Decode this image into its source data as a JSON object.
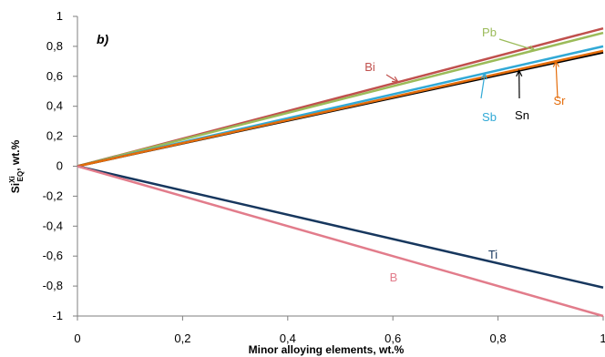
{
  "chart_data": {
    "type": "line",
    "panel_label": "b)",
    "xlabel": "Minor alloying elements, wt.%",
    "ylabel": {
      "base": "Si",
      "sup": "Xi",
      "sub": "EQ",
      "suffix": ", wt.%"
    },
    "xlim": [
      0,
      1
    ],
    "ylim": [
      -1,
      1
    ],
    "x_ticks": [
      "0",
      "0,2",
      "0,4",
      "0,6",
      "0,8",
      "1"
    ],
    "y_ticks": [
      "1",
      "0,8",
      "0,6",
      "0,4",
      "0,2",
      "0",
      "-0,2",
      "-0,4",
      "-0,6",
      "-0,8",
      "-1"
    ],
    "grid": false,
    "series": [
      {
        "name": "Bi",
        "color": "#c0504d",
        "x": [
          0,
          1
        ],
        "y": [
          0,
          0.92
        ]
      },
      {
        "name": "Pb",
        "color": "#9bbb59",
        "x": [
          0,
          1
        ],
        "y": [
          0,
          0.89
        ]
      },
      {
        "name": "Sb",
        "color": "#31a9d6",
        "x": [
          0,
          1
        ],
        "y": [
          0,
          0.8
        ]
      },
      {
        "name": "Sn",
        "color": "#000000",
        "x": [
          0,
          1
        ],
        "y": [
          0,
          0.76
        ]
      },
      {
        "name": "Sr",
        "color": "#e46c0a",
        "x": [
          0,
          1
        ],
        "y": [
          0,
          0.77
        ]
      },
      {
        "name": "Ti",
        "color": "#17375e",
        "x": [
          0,
          1
        ],
        "y": [
          0,
          -0.81
        ]
      },
      {
        "name": "B",
        "color": "#e27c8b",
        "x": [
          0,
          1
        ],
        "y": [
          0,
          -1.0
        ]
      }
    ]
  }
}
